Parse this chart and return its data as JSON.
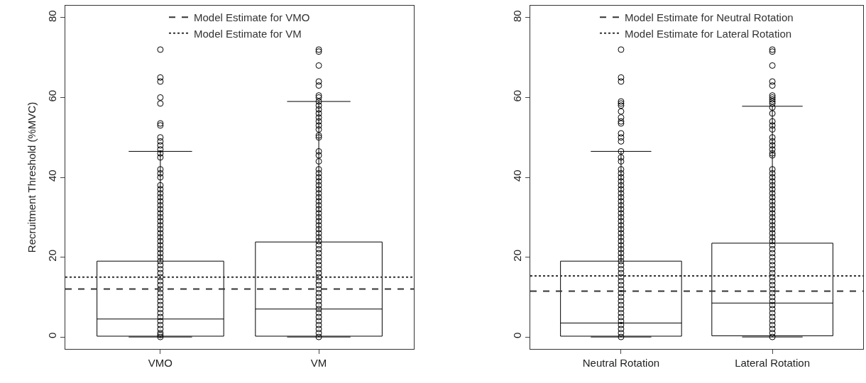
{
  "chart_data": [
    {
      "type": "box",
      "ylabel": "Recruitment Threshold (%MVC)",
      "categories": [
        "VMO",
        "VM"
      ],
      "ylim": [
        -3,
        83
      ],
      "yticks": [
        0,
        20,
        40,
        60,
        80
      ],
      "legend": "top",
      "marker": "circle",
      "boxes": [
        {
          "low": 0,
          "q1": 0.2,
          "median": 4.5,
          "q3": 19,
          "high": 46.5
        },
        {
          "low": 0,
          "q1": 0.2,
          "median": 7,
          "q3": 23.8,
          "high": 59
        }
      ],
      "series": [
        {
          "type": "scatter",
          "color": "#000000",
          "x": [
            "VMO",
            "VMO",
            "VMO",
            "VMO",
            "VMO",
            "VMO",
            "VMO",
            "VMO",
            "VMO",
            "VMO",
            "VMO",
            "VMO",
            "VMO",
            "VMO",
            "VMO",
            "VMO",
            "VMO",
            "VMO",
            "VMO",
            "VMO",
            "VMO",
            "VMO",
            "VMO",
            "VMO",
            "VMO",
            "VMO",
            "VMO",
            "VMO",
            "VMO",
            "VMO",
            "VMO",
            "VMO",
            "VMO",
            "VMO",
            "VMO",
            "VMO",
            "VMO",
            "VMO",
            "VMO",
            "VMO",
            "VMO",
            "VMO",
            "VMO",
            "VMO",
            "VMO",
            "VMO",
            "VMO",
            "VMO",
            "VMO",
            "VMO",
            "VMO",
            "VMO",
            "VMO",
            "VMO",
            "VMO",
            "VMO"
          ],
          "values": [
            72,
            65,
            64,
            60,
            58.5,
            53.5,
            53,
            50,
            49,
            48,
            47,
            46,
            45,
            42,
            41,
            40,
            38,
            37,
            36,
            35,
            34,
            33,
            32,
            31,
            30,
            29,
            28,
            27,
            26,
            25,
            24,
            23,
            22,
            21,
            20,
            19,
            18,
            17,
            16,
            15,
            14,
            13,
            12,
            11,
            10,
            9,
            8,
            7,
            6,
            5,
            4,
            3,
            2,
            1,
            0.5,
            0
          ]
        },
        {
          "type": "scatter",
          "color": "#000000",
          "x": [
            "VM",
            "VM",
            "VM",
            "VM",
            "VM",
            "VM",
            "VM",
            "VM",
            "VM",
            "VM",
            "VM",
            "VM",
            "VM",
            "VM",
            "VM",
            "VM",
            "VM",
            "VM",
            "VM",
            "VM",
            "VM",
            "VM",
            "VM",
            "VM",
            "VM",
            "VM",
            "VM",
            "VM",
            "VM",
            "VM",
            "VM",
            "VM",
            "VM",
            "VM",
            "VM",
            "VM",
            "VM",
            "VM",
            "VM",
            "VM",
            "VM",
            "VM",
            "VM",
            "VM",
            "VM",
            "VM",
            "VM",
            "VM",
            "VM",
            "VM",
            "VM",
            "VM",
            "VM",
            "VM",
            "VM",
            "VM",
            "VM",
            "VM",
            "VM",
            "VM",
            "VM",
            "VM",
            "VM"
          ],
          "values": [
            72,
            71.5,
            68,
            64,
            63,
            60.5,
            60,
            59,
            58,
            57,
            56,
            55,
            54,
            53,
            52,
            50.5,
            50,
            46.5,
            45.5,
            44,
            42,
            41,
            40,
            39,
            38,
            37,
            36,
            35,
            34,
            33,
            32,
            31,
            30,
            29,
            28,
            27,
            26,
            25,
            24,
            23,
            22,
            21,
            20,
            19,
            18,
            17,
            16,
            15,
            14,
            13,
            12,
            11,
            10,
            9,
            8,
            7,
            6,
            5,
            4,
            3,
            2,
            1,
            0
          ]
        }
      ],
      "ref_lines": [
        {
          "axis": "y",
          "value": 12,
          "label": "Model Estimate for VMO",
          "line_style": "dashed",
          "color": "#333333"
        },
        {
          "axis": "y",
          "value": 15,
          "label": "Model Estimate for VM",
          "line_style": "dotted",
          "color": "#333333"
        }
      ]
    },
    {
      "type": "box",
      "categories": [
        "Neutral Rotation",
        "Lateral Rotation"
      ],
      "ylim": [
        -3,
        83
      ],
      "yticks": [
        0,
        20,
        40,
        60,
        80
      ],
      "legend": "top",
      "marker": "circle",
      "boxes": [
        {
          "low": 0,
          "q1": 0.2,
          "median": 3.5,
          "q3": 19,
          "high": 46.5
        },
        {
          "low": 0,
          "q1": 0.3,
          "median": 8.5,
          "q3": 23.5,
          "high": 57.8
        }
      ],
      "series": [
        {
          "type": "scatter",
          "color": "#000000",
          "x": [
            "Neutral Rotation",
            "Neutral Rotation",
            "Neutral Rotation",
            "Neutral Rotation",
            "Neutral Rotation",
            "Neutral Rotation",
            "Neutral Rotation",
            "Neutral Rotation",
            "Neutral Rotation",
            "Neutral Rotation",
            "Neutral Rotation",
            "Neutral Rotation",
            "Neutral Rotation",
            "Neutral Rotation",
            "Neutral Rotation",
            "Neutral Rotation",
            "Neutral Rotation",
            "Neutral Rotation",
            "Neutral Rotation",
            "Neutral Rotation",
            "Neutral Rotation",
            "Neutral Rotation",
            "Neutral Rotation",
            "Neutral Rotation",
            "Neutral Rotation",
            "Neutral Rotation",
            "Neutral Rotation",
            "Neutral Rotation",
            "Neutral Rotation",
            "Neutral Rotation",
            "Neutral Rotation",
            "Neutral Rotation",
            "Neutral Rotation",
            "Neutral Rotation",
            "Neutral Rotation",
            "Neutral Rotation",
            "Neutral Rotation",
            "Neutral Rotation",
            "Neutral Rotation",
            "Neutral Rotation",
            "Neutral Rotation",
            "Neutral Rotation",
            "Neutral Rotation",
            "Neutral Rotation",
            "Neutral Rotation",
            "Neutral Rotation",
            "Neutral Rotation",
            "Neutral Rotation",
            "Neutral Rotation",
            "Neutral Rotation",
            "Neutral Rotation",
            "Neutral Rotation",
            "Neutral Rotation",
            "Neutral Rotation",
            "Neutral Rotation",
            "Neutral Rotation",
            "Neutral Rotation",
            "Neutral Rotation",
            "Neutral Rotation"
          ],
          "values": [
            72,
            65,
            64,
            59,
            58.5,
            58,
            56.5,
            55,
            54,
            53.5,
            51,
            50,
            49,
            46.5,
            45,
            44,
            42,
            41,
            40,
            39,
            38,
            37,
            36,
            35,
            34,
            33,
            32,
            31,
            30,
            29,
            28,
            27,
            26,
            25,
            24,
            23,
            22,
            21,
            20,
            19,
            18,
            17,
            16,
            15,
            14,
            13,
            12,
            11,
            10,
            9,
            8,
            7,
            6,
            5,
            4,
            3,
            2,
            1,
            0
          ]
        },
        {
          "type": "scatter",
          "color": "#000000",
          "x": [
            "Lateral Rotation",
            "Lateral Rotation",
            "Lateral Rotation",
            "Lateral Rotation",
            "Lateral Rotation",
            "Lateral Rotation",
            "Lateral Rotation",
            "Lateral Rotation",
            "Lateral Rotation",
            "Lateral Rotation",
            "Lateral Rotation",
            "Lateral Rotation",
            "Lateral Rotation",
            "Lateral Rotation",
            "Lateral Rotation",
            "Lateral Rotation",
            "Lateral Rotation",
            "Lateral Rotation",
            "Lateral Rotation",
            "Lateral Rotation",
            "Lateral Rotation",
            "Lateral Rotation",
            "Lateral Rotation",
            "Lateral Rotation",
            "Lateral Rotation",
            "Lateral Rotation",
            "Lateral Rotation",
            "Lateral Rotation",
            "Lateral Rotation",
            "Lateral Rotation",
            "Lateral Rotation",
            "Lateral Rotation",
            "Lateral Rotation",
            "Lateral Rotation",
            "Lateral Rotation",
            "Lateral Rotation",
            "Lateral Rotation",
            "Lateral Rotation",
            "Lateral Rotation",
            "Lateral Rotation",
            "Lateral Rotation",
            "Lateral Rotation",
            "Lateral Rotation",
            "Lateral Rotation",
            "Lateral Rotation",
            "Lateral Rotation",
            "Lateral Rotation",
            "Lateral Rotation",
            "Lateral Rotation",
            "Lateral Rotation",
            "Lateral Rotation",
            "Lateral Rotation",
            "Lateral Rotation",
            "Lateral Rotation",
            "Lateral Rotation",
            "Lateral Rotation",
            "Lateral Rotation",
            "Lateral Rotation",
            "Lateral Rotation",
            "Lateral Rotation",
            "Lateral Rotation",
            "Lateral Rotation",
            "Lateral Rotation",
            "Lateral Rotation"
          ],
          "values": [
            72,
            71.5,
            68,
            64,
            63,
            60.5,
            60,
            59.5,
            59,
            58.5,
            57.5,
            56,
            54,
            53,
            52,
            50,
            49,
            48,
            47,
            46,
            45.5,
            42,
            41,
            40,
            39,
            38,
            37,
            36,
            35,
            34,
            33,
            32,
            31,
            30,
            29,
            28,
            27,
            26,
            25,
            24,
            23,
            22,
            21,
            20,
            19,
            18,
            17,
            16,
            15,
            14,
            13,
            12,
            11,
            10,
            9,
            8,
            7,
            6,
            5,
            4,
            3,
            2,
            1,
            0
          ]
        }
      ],
      "ref_lines": [
        {
          "axis": "y",
          "value": 11.5,
          "label": "Model Estimate for Neutral Rotation",
          "line_style": "dashed",
          "color": "#333333"
        },
        {
          "axis": "y",
          "value": 15.3,
          "label": "Model Estimate for Lateral Rotation",
          "line_style": "dotted",
          "color": "#333333"
        }
      ]
    }
  ]
}
